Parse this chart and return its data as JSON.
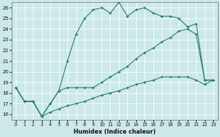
{
  "xlabel": "Humidex (Indice chaleur)",
  "bg_color": "#cce8e8",
  "line_color": "#1a7a6e",
  "grid_color": "#ffffff",
  "xlim": [
    -0.5,
    23.5
  ],
  "ylim": [
    15.5,
    26.5
  ],
  "xticks": [
    0,
    1,
    2,
    3,
    4,
    5,
    6,
    7,
    8,
    9,
    10,
    11,
    12,
    13,
    14,
    15,
    16,
    17,
    18,
    19,
    20,
    21,
    22,
    23
  ],
  "yticks": [
    16,
    17,
    18,
    19,
    20,
    21,
    22,
    23,
    24,
    25,
    26
  ],
  "series": [
    {
      "x": [
        0,
        1,
        2,
        3,
        4,
        5,
        6,
        7,
        8,
        9,
        10,
        11,
        12,
        13,
        14,
        15,
        16,
        17,
        18,
        19,
        20,
        21,
        22,
        23
      ],
      "y": [
        18.5,
        17.2,
        17.2,
        15.8,
        17.0,
        18.2,
        21.0,
        23.5,
        25.0,
        25.8,
        26.0,
        25.5,
        26.5,
        25.2,
        25.8,
        26.0,
        25.5,
        25.2,
        25.2,
        25.0,
        24.2,
        24.5,
        19.2,
        19.2
      ]
    },
    {
      "x": [
        0,
        1,
        2,
        3,
        4,
        5,
        6,
        7,
        8,
        9,
        10,
        11,
        12,
        13,
        14,
        15,
        16,
        17,
        18,
        19,
        20,
        21,
        22,
        23
      ],
      "y": [
        18.5,
        17.2,
        17.2,
        15.8,
        17.0,
        18.2,
        18.5,
        18.5,
        18.5,
        18.5,
        19.0,
        19.5,
        20.0,
        20.5,
        21.2,
        21.8,
        22.2,
        22.8,
        23.2,
        23.8,
        24.0,
        23.5,
        19.2,
        19.2
      ]
    },
    {
      "x": [
        0,
        1,
        2,
        3,
        4,
        5,
        6,
        7,
        8,
        9,
        10,
        11,
        12,
        13,
        14,
        15,
        16,
        17,
        18,
        19,
        20,
        21,
        22,
        23
      ],
      "y": [
        18.5,
        17.2,
        17.2,
        15.8,
        16.2,
        16.5,
        16.8,
        17.0,
        17.2,
        17.5,
        17.8,
        18.0,
        18.2,
        18.5,
        18.8,
        19.0,
        19.2,
        19.5,
        19.5,
        19.5,
        19.5,
        19.2,
        18.8,
        19.2
      ]
    }
  ]
}
